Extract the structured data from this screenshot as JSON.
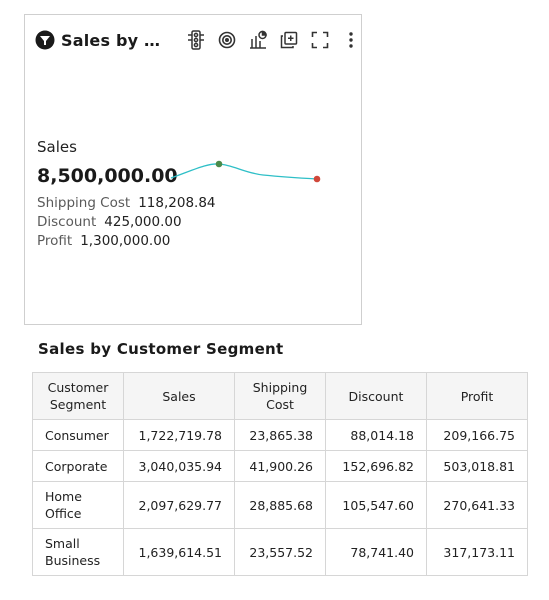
{
  "card": {
    "title": "Sales by Customer Segment",
    "title_display": "Sales by C...",
    "icons": [
      "filter-icon",
      "traffic-light-icon",
      "target-icon",
      "chart-settings-icon",
      "add-layer-icon",
      "fullscreen-icon",
      "more-options-icon"
    ],
    "kpi_label": "Sales",
    "kpi_value": "8,500,000.00",
    "metrics": [
      {
        "label": "Shipping Cost",
        "value": "118,208.84"
      },
      {
        "label": "Discount",
        "value": "425,000.00"
      },
      {
        "label": "Profit",
        "value": "1,300,000.00"
      }
    ],
    "sparkline_color": "#2ebfc7",
    "marker_high_color": "#4a8a4a",
    "marker_end_color": "#d0473a"
  },
  "table": {
    "title": "Sales by Customer Segment",
    "columns": [
      "Customer Segment",
      "Sales",
      "Shipping Cost",
      "Discount",
      "Profit"
    ],
    "rows": [
      {
        "segment": "Consumer",
        "sales": "1,722,719.78",
        "shipping": "23,865.38",
        "discount": "88,014.18",
        "profit": "209,166.75"
      },
      {
        "segment": "Corporate",
        "sales": "3,040,035.94",
        "shipping": "41,900.26",
        "discount": "152,696.82",
        "profit": "503,018.81"
      },
      {
        "segment": "Home Office",
        "sales": "2,097,629.77",
        "shipping": "28,885.68",
        "discount": "105,547.60",
        "profit": "270,641.33"
      },
      {
        "segment": "Small Business",
        "sales": "1,639,614.51",
        "shipping": "23,557.52",
        "discount": "78,741.40",
        "profit": "317,173.11"
      }
    ]
  }
}
